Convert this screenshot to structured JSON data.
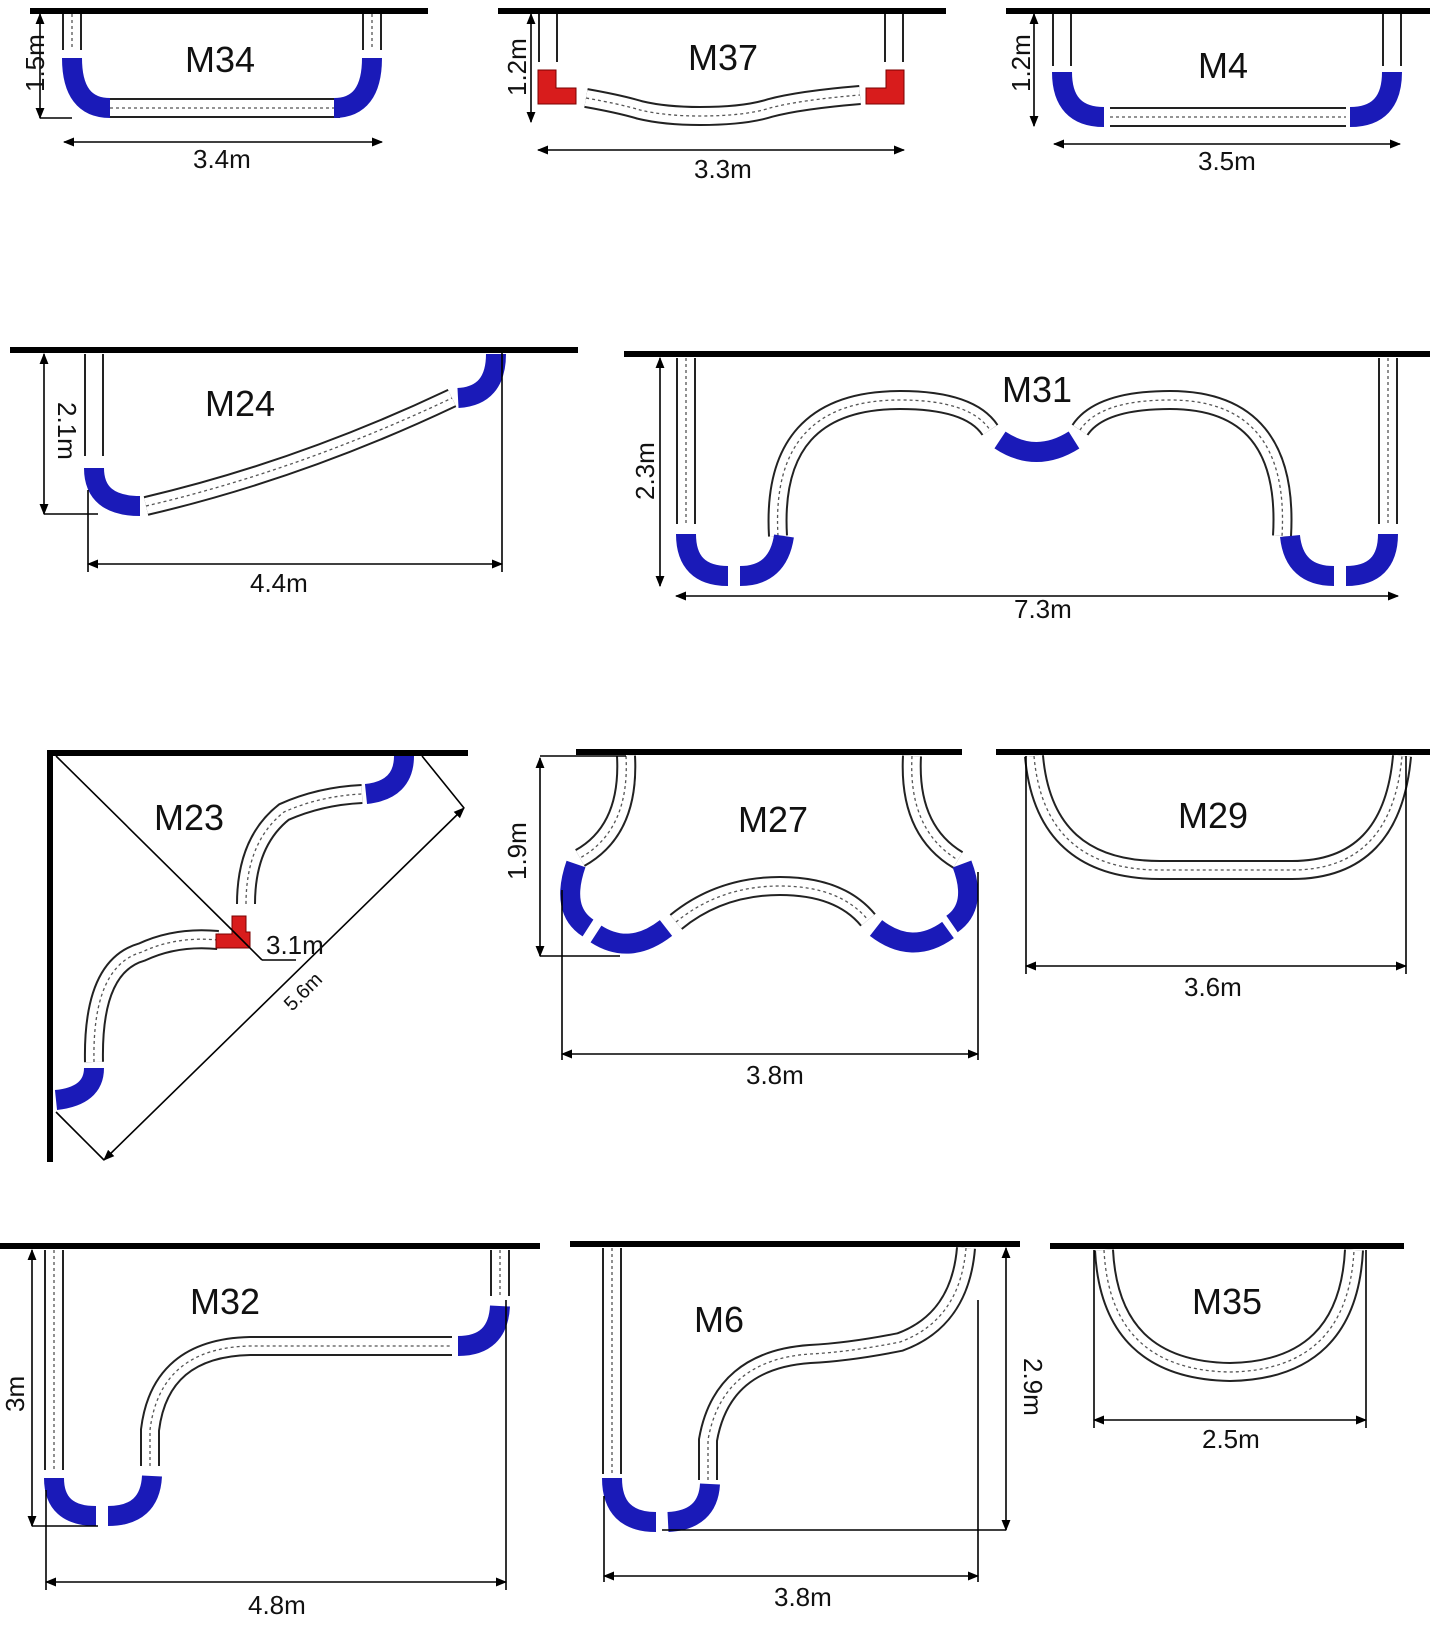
{
  "figure": {
    "colors": {
      "wall": "#000000",
      "track": "#222222",
      "blue_piece": "#1a1ab8",
      "red_piece": "#d81c1c",
      "background": "#ffffff"
    },
    "layouts": [
      {
        "id": "M34",
        "width": "3.4m",
        "height": "1.5m"
      },
      {
        "id": "M37",
        "width": "3.3m",
        "height": "1.2m"
      },
      {
        "id": "M4",
        "width": "3.5m",
        "height": "1.2m"
      },
      {
        "id": "M24",
        "width": "4.4m",
        "height": "2.1m"
      },
      {
        "id": "M31",
        "width": "7.3m",
        "height": "2.3m"
      },
      {
        "id": "M23",
        "width": "5.6m",
        "height": "3.1m"
      },
      {
        "id": "M27",
        "width": "3.8m",
        "height": "1.9m"
      },
      {
        "id": "M29",
        "width": "3.6m"
      },
      {
        "id": "M32",
        "width": "4.8m",
        "height": "3m"
      },
      {
        "id": "M6",
        "width": "3.8m",
        "height": "2.9m"
      },
      {
        "id": "M35",
        "width": "2.5m"
      }
    ]
  }
}
